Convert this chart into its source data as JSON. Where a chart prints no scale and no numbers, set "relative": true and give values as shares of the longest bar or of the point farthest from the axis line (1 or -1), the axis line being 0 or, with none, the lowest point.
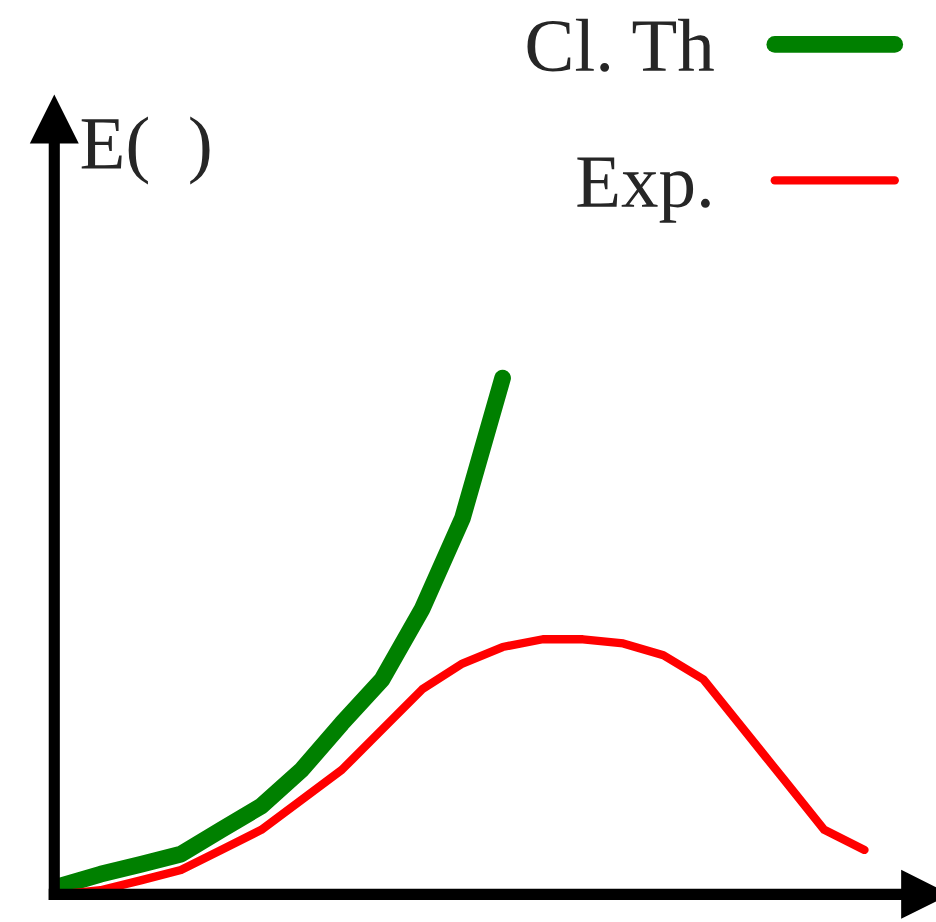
{
  "chart_data": {
    "type": "line",
    "relative": true,
    "ylabel": "E(  )",
    "legend": "top right",
    "marker": "none",
    "line_style": "solid",
    "categories": [
      null,
      null,
      null,
      null,
      null,
      null,
      null,
      null,
      null,
      null,
      null,
      null,
      null,
      null,
      null,
      null,
      null,
      null,
      null,
      null,
      null
    ],
    "series": [
      {
        "name": "Cl. Th",
        "color": "#008000",
        "values": [
          0.016,
          0.039,
          0.058,
          0.078,
          0.125,
          0.171,
          0.241,
          0.331,
          0.416,
          0.553,
          0.728,
          1,
          null,
          null,
          null,
          null,
          null,
          null,
          null,
          null,
          null
        ]
      },
      {
        "name": "Exp.",
        "color": "#ff0000",
        "values": [
          0,
          0.008,
          0.027,
          0.047,
          0.086,
          0.125,
          0.183,
          0.241,
          0.319,
          0.397,
          0.447,
          0.479,
          0.494,
          0.494,
          0.486,
          0.463,
          0.416,
          0.319,
          0.222,
          0.125,
          0.086
        ]
      }
    ]
  }
}
